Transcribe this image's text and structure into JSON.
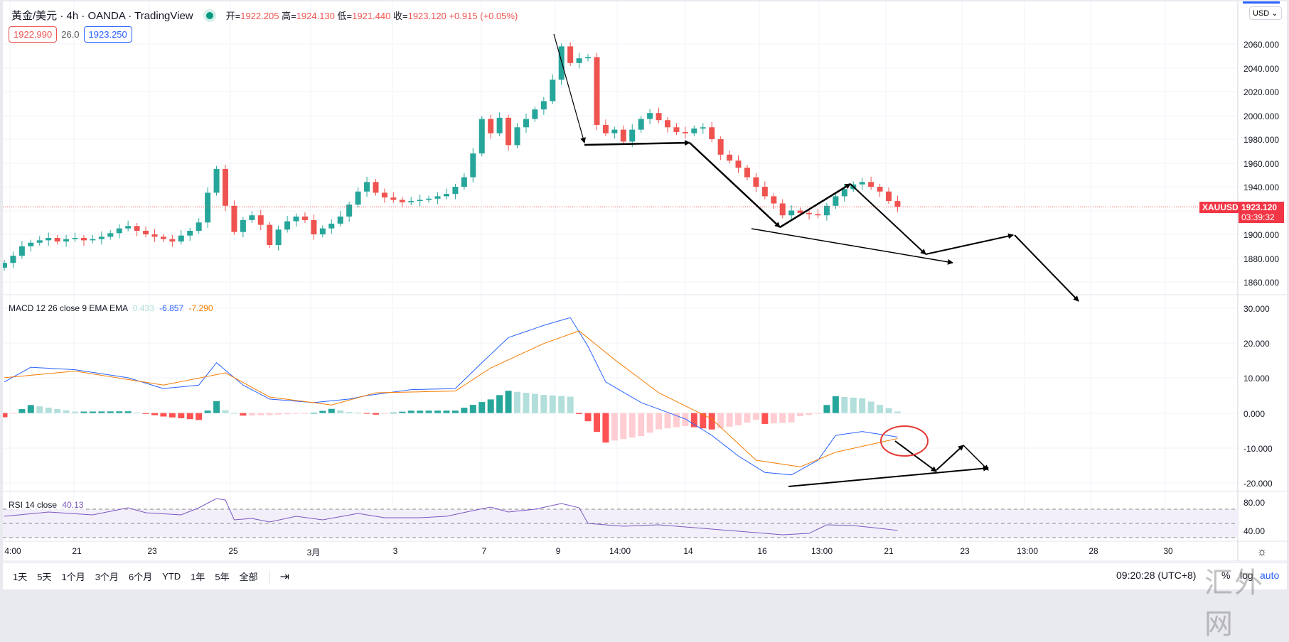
{
  "header": {
    "title": "黃金/美元 · 4h · OANDA · TradingView",
    "open_label": "开=",
    "open": "1922.205",
    "high_label": "高=",
    "high": "1924.130",
    "low_label": "低=",
    "low": "1921.440",
    "close_label": "收=",
    "close": "1923.120",
    "change": "+0.915 (+0.05%)"
  },
  "quote": {
    "bid": "1922.990",
    "spread": "26.0",
    "ask": "1923.250"
  },
  "currency": "USD ⌄",
  "price_tag": {
    "symbol": "XAUUSD",
    "price": "1923.120",
    "countdown": "03:39:32"
  },
  "price_axis": [
    "2060.000",
    "2040.000",
    "2020.000",
    "2000.000",
    "1980.000",
    "1960.000",
    "1940.000",
    "1900.000",
    "1880.000",
    "1860.000"
  ],
  "macd": {
    "label": "MACD 12 26 close 9 EMA EMA",
    "hist": "0.433",
    "macd": "-6.857",
    "signal": "-7.290",
    "axis": [
      "30.000",
      "20.000",
      "10.000",
      "0.000",
      "-10.000",
      "-20.000"
    ]
  },
  "rsi": {
    "label": "RSI 14 close",
    "value": "40.13",
    "axis": [
      "80.00",
      "40.00"
    ]
  },
  "time_axis": [
    "4:00",
    "21",
    "23",
    "25",
    "3月",
    "3",
    "7",
    "9",
    "14:00",
    "14",
    "16",
    "13:00",
    "21",
    "23",
    "13:00",
    "28",
    "30"
  ],
  "toolbar": {
    "ranges": [
      "1天",
      "5天",
      "1个月",
      "3个月",
      "6个月",
      "YTD",
      "1年",
      "5年",
      "全部"
    ],
    "goto": "⇥",
    "clock": "09:20:28 (UTC+8)",
    "percent": "%",
    "log": "log",
    "auto": "auto"
  },
  "watermark": "汇外网",
  "colors": {
    "up": "#26a69a",
    "down": "#ef5350",
    "macd": "#2962ff",
    "signal": "#f57c00",
    "rsi": "#7e57c2",
    "annotation": "#000000",
    "circle": "#e53935"
  },
  "chart_data": {
    "type": "candlestick",
    "price_range": [
      1850,
      2080
    ],
    "closes": [
      1876,
      1882,
      1890,
      1893,
      1895,
      1897,
      1894,
      1896,
      1897,
      1895,
      1896,
      1898,
      1901,
      1905,
      1907,
      1903,
      1900,
      1898,
      1896,
      1894,
      1899,
      1903,
      1910,
      1935,
      1955,
      1924,
      1902,
      1912,
      1916,
      1908,
      1891,
      1904,
      1911,
      1915,
      1912,
      1900,
      1905,
      1909,
      1915,
      1925,
      1936,
      1944,
      1935,
      1931,
      1929,
      1927,
      1928,
      1929,
      1930,
      1932,
      1934,
      1940,
      1948,
      1968,
      1997,
      1985,
      1998,
      1975,
      1990,
      1997,
      2005,
      2012,
      2030,
      2058,
      2044,
      2048,
      2049,
      1992,
      1985,
      1988,
      1978,
      1988,
      1997,
      2002,
      1996,
      1990,
      1986,
      1985,
      1989,
      1990,
      1980,
      1967,
      1962,
      1956,
      1948,
      1940,
      1932,
      1926,
      1916,
      1920,
      1918,
      1917,
      1916,
      1924,
      1932,
      1938,
      1942,
      1944,
      1940,
      1936,
      1928,
      1923.12
    ],
    "macd_line": [
      [
        0,
        8.9
      ],
      [
        3,
        13.1
      ],
      [
        8,
        12.4
      ],
      [
        14,
        10.1
      ],
      [
        18,
        7.0
      ],
      [
        22,
        8.0
      ],
      [
        24,
        14.4
      ],
      [
        27,
        8
      ],
      [
        30,
        4
      ],
      [
        35,
        3
      ],
      [
        39,
        4
      ],
      [
        41,
        5
      ],
      [
        46,
        6.7
      ],
      [
        51,
        7.0
      ],
      [
        54,
        14.4
      ],
      [
        57,
        21.6
      ],
      [
        61,
        25.1
      ],
      [
        64,
        27.3
      ],
      [
        66,
        19.1
      ],
      [
        68,
        8.9
      ],
      [
        72,
        3
      ],
      [
        77,
        -1.7
      ],
      [
        80,
        -6.4
      ],
      [
        83,
        -12.3
      ],
      [
        86,
        -17
      ],
      [
        89,
        -17.7
      ],
      [
        92,
        -13.5
      ],
      [
        94,
        -6.4
      ],
      [
        97,
        -5.3
      ],
      [
        101,
        -6.857
      ]
    ],
    "signal_line": [
      [
        0,
        10.1
      ],
      [
        8,
        12
      ],
      [
        18,
        8
      ],
      [
        25,
        11.5
      ],
      [
        30,
        4.6
      ],
      [
        37,
        2.3
      ],
      [
        42,
        5.8
      ],
      [
        51,
        6.3
      ],
      [
        55,
        12.9
      ],
      [
        61,
        19.9
      ],
      [
        65,
        23.5
      ],
      [
        69,
        15.3
      ],
      [
        74,
        5.8
      ],
      [
        80,
        -1.7
      ],
      [
        85,
        -13.5
      ],
      [
        90,
        -15.4
      ],
      [
        94,
        -11.2
      ],
      [
        101,
        -7.29
      ]
    ],
    "macd_range": [
      -22,
      32
    ],
    "rsi_line": [
      [
        0,
        60
      ],
      [
        5,
        66
      ],
      [
        10,
        62
      ],
      [
        14,
        72
      ],
      [
        16,
        65
      ],
      [
        20,
        62
      ],
      [
        22,
        72
      ],
      [
        24,
        85
      ],
      [
        25,
        83
      ],
      [
        26,
        55
      ],
      [
        28,
        57
      ],
      [
        30,
        52
      ],
      [
        33,
        60
      ],
      [
        36,
        55
      ],
      [
        40,
        64
      ],
      [
        43,
        58
      ],
      [
        47,
        58
      ],
      [
        50,
        60
      ],
      [
        53,
        68
      ],
      [
        55,
        73
      ],
      [
        57,
        66
      ],
      [
        60,
        70
      ],
      [
        63,
        78
      ],
      [
        65,
        72
      ],
      [
        66,
        50
      ],
      [
        70,
        46
      ],
      [
        74,
        48
      ],
      [
        78,
        44
      ],
      [
        82,
        40
      ],
      [
        86,
        36
      ],
      [
        88,
        34
      ],
      [
        91,
        36
      ],
      [
        93,
        48
      ],
      [
        96,
        47
      ],
      [
        99,
        43
      ],
      [
        101,
        40.13
      ]
    ],
    "rsi_bands": [
      30,
      50,
      70
    ]
  }
}
